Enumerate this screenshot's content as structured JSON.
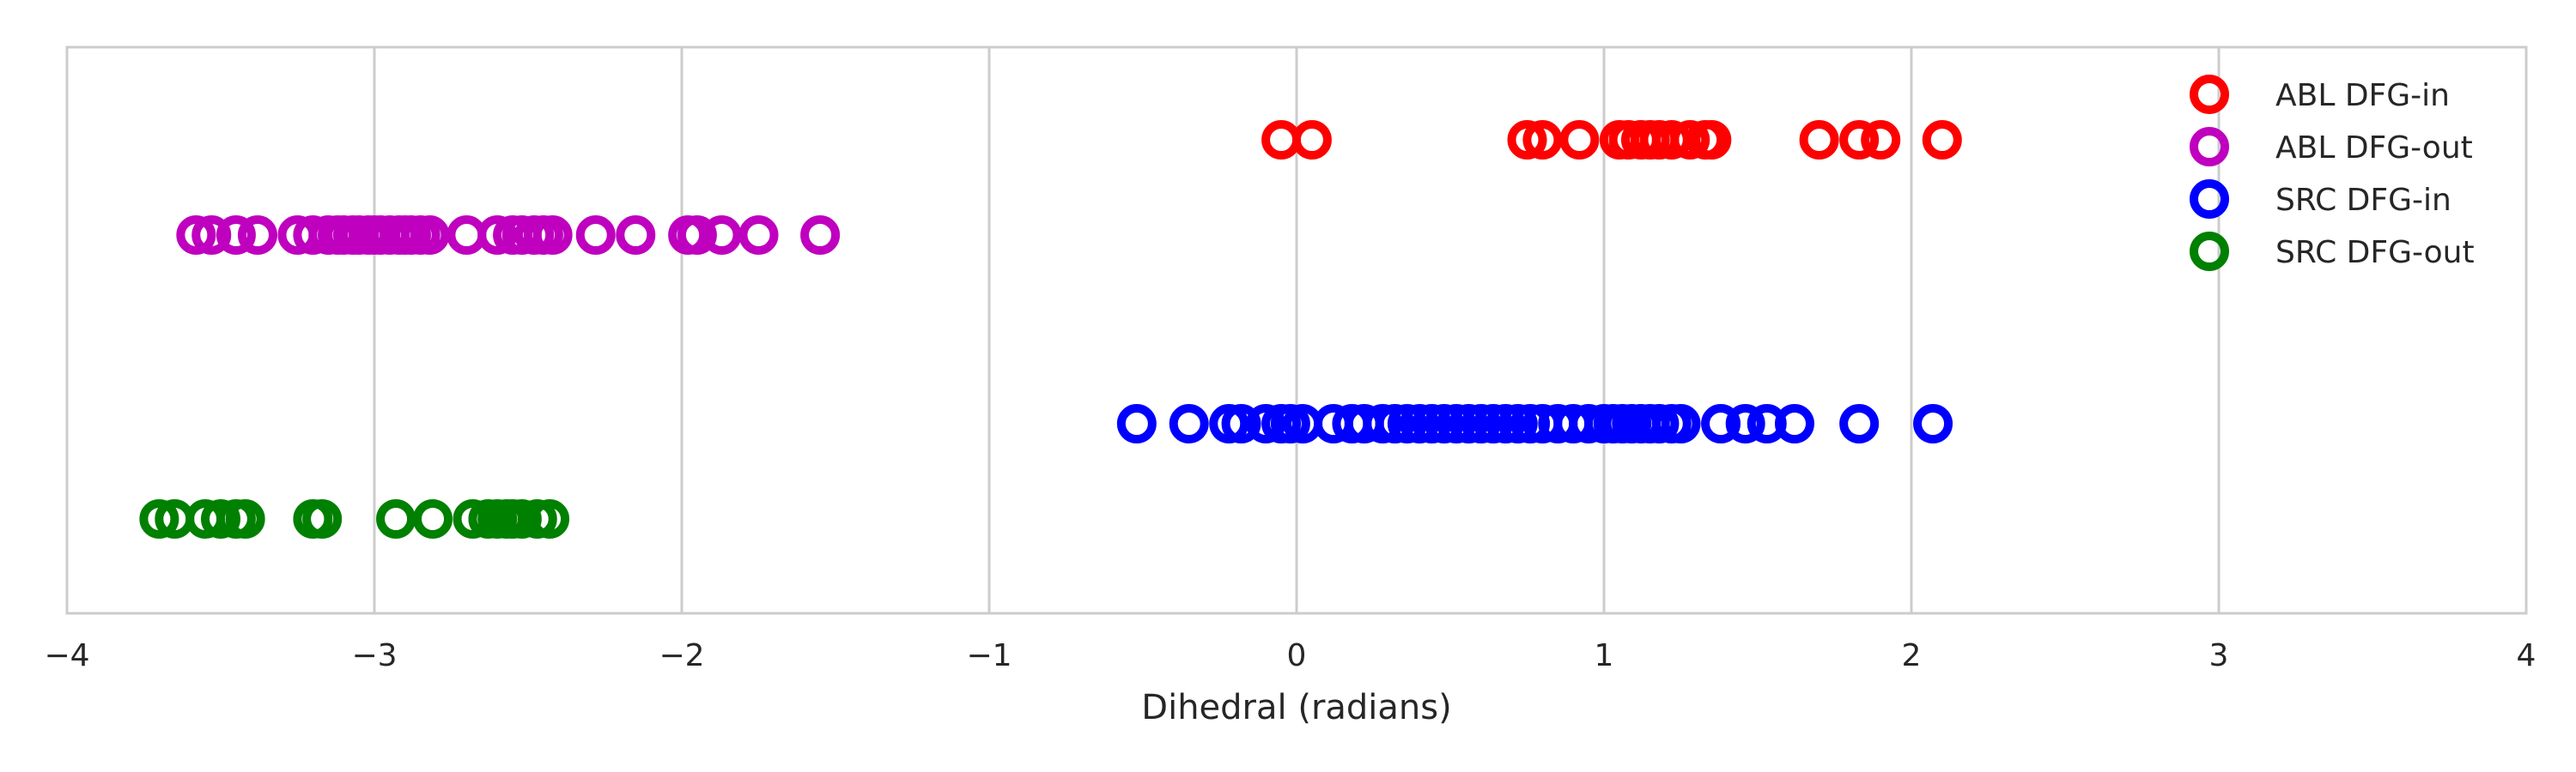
{
  "chart_data": {
    "type": "scatter",
    "title": "",
    "xlabel": "Dihedral (radians)",
    "ylabel": "",
    "xlim": [
      -4,
      4
    ],
    "xticks": [
      -4,
      -3,
      -2,
      -1,
      0,
      1,
      2,
      3,
      4
    ],
    "xtick_labels": [
      "−4",
      "−3",
      "−2",
      "−1",
      "0",
      "1",
      "2",
      "3",
      "4"
    ],
    "grid": "vertical",
    "legend_position": "top-right",
    "marker": "hollow circle",
    "series": [
      {
        "name": "ABL DFG-in",
        "color": "#ff0000",
        "row": 1,
        "x": [
          -0.05,
          0.05,
          0.75,
          0.8,
          0.92,
          1.05,
          1.08,
          1.12,
          1.15,
          1.18,
          1.22,
          1.28,
          1.33,
          1.35,
          1.7,
          1.83,
          1.9,
          2.1
        ]
      },
      {
        "name": "ABL DFG-out",
        "color": "#bf00bf",
        "row": 2,
        "x": [
          -3.58,
          -3.53,
          -3.45,
          -3.38,
          -3.25,
          -3.2,
          -3.15,
          -3.12,
          -3.1,
          -3.07,
          -3.05,
          -3.02,
          -3.0,
          -2.98,
          -2.95,
          -2.92,
          -2.9,
          -2.88,
          -2.85,
          -2.82,
          -2.7,
          -2.6,
          -2.55,
          -2.52,
          -2.48,
          -2.45,
          -2.42,
          -2.28,
          -2.15,
          -1.98,
          -1.95,
          -1.87,
          -1.75,
          -1.55
        ]
      },
      {
        "name": "SRC DFG-in",
        "color": "#0000ff",
        "row": 3,
        "x": [
          -0.52,
          -0.35,
          -0.22,
          -0.18,
          -0.1,
          -0.05,
          -0.02,
          0.02,
          0.12,
          0.18,
          0.22,
          0.28,
          0.32,
          0.36,
          0.4,
          0.44,
          0.48,
          0.52,
          0.56,
          0.6,
          0.64,
          0.68,
          0.72,
          0.76,
          0.8,
          0.85,
          0.9,
          0.95,
          1.0,
          1.03,
          1.06,
          1.09,
          1.12,
          1.15,
          1.18,
          1.22,
          1.25,
          1.38,
          1.46,
          1.53,
          1.62,
          1.83,
          2.07
        ]
      },
      {
        "name": "SRC DFG-out",
        "color": "#008000",
        "row": 4,
        "x": [
          -3.7,
          -3.65,
          -3.55,
          -3.5,
          -3.45,
          -3.42,
          -3.2,
          -3.17,
          -2.93,
          -2.81,
          -2.68,
          -2.63,
          -2.6,
          -2.57,
          -2.55,
          -2.52,
          -2.47,
          -2.43
        ]
      }
    ]
  }
}
